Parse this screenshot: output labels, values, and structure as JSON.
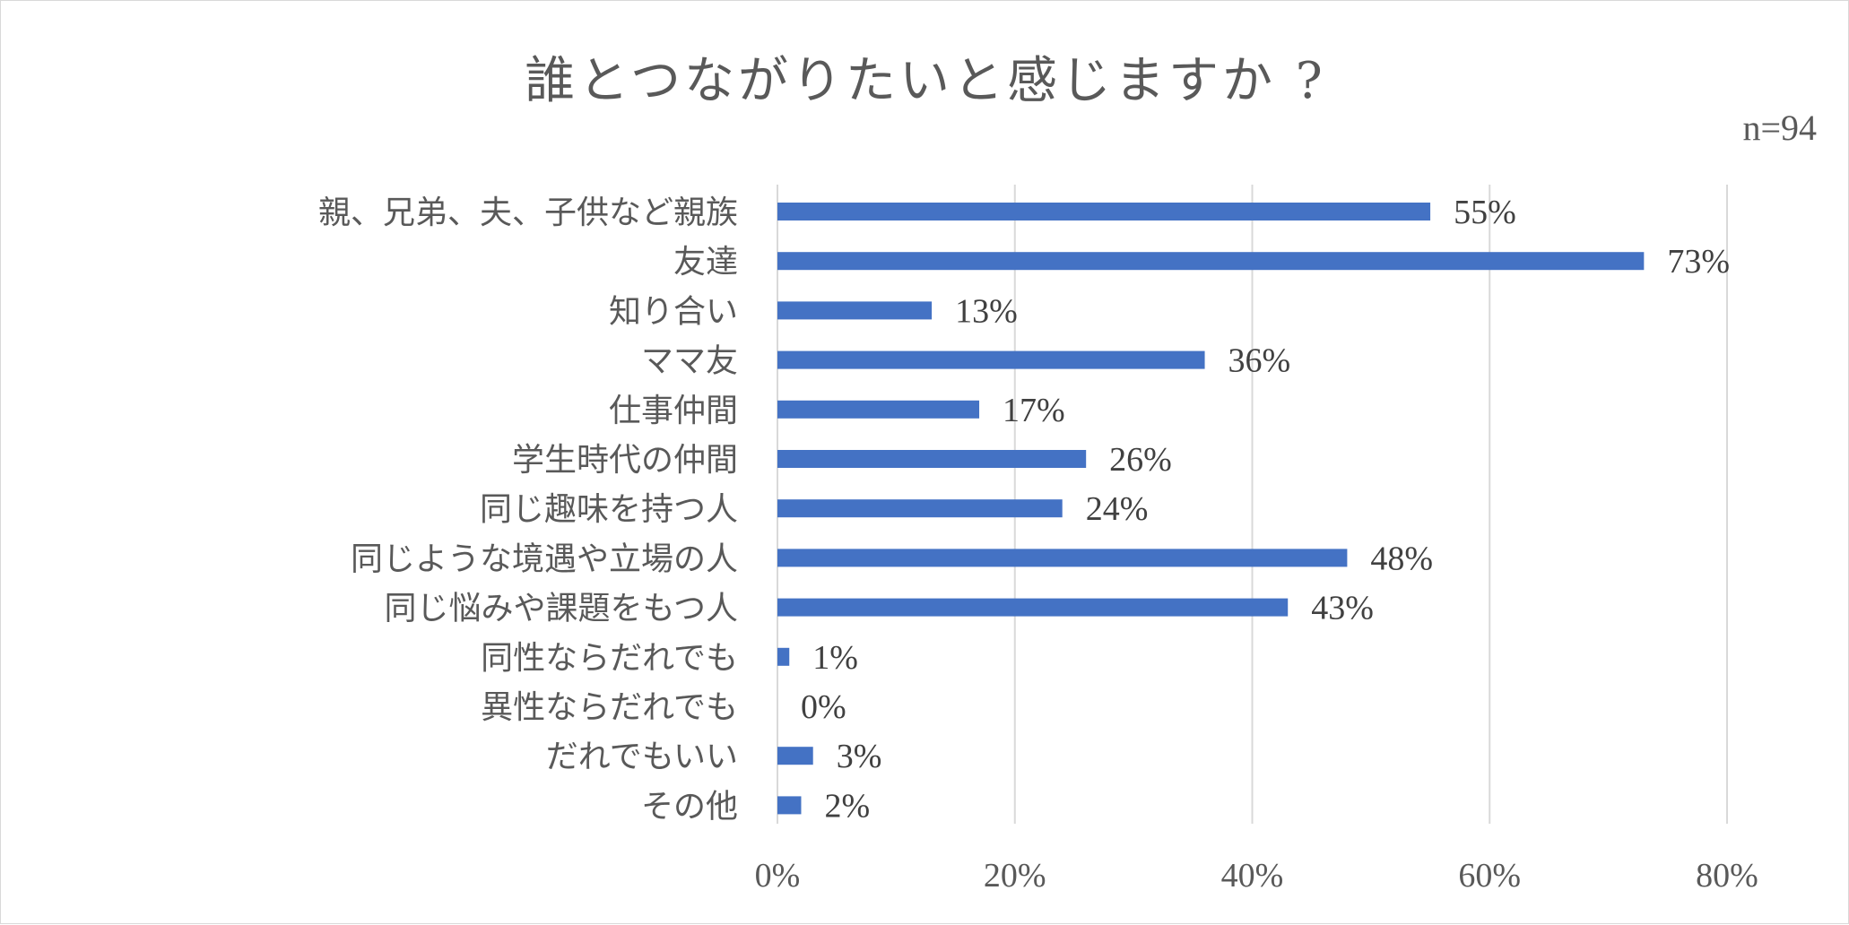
{
  "chart_data": {
    "type": "bar",
    "orientation": "horizontal",
    "title": "誰とつながりたいと感じますか ?",
    "note": "n=94",
    "categories": [
      "親、兄弟、夫、子供など親族",
      "友達",
      "知り合い",
      "ママ友",
      "仕事仲間",
      "学生時代の仲間",
      "同じ趣味を持つ人",
      "同じような境遇や立場の人",
      "同じ悩みや課題をもつ人",
      "同性ならだれでも",
      "異性ならだれでも",
      "だれでもいい",
      "その他"
    ],
    "values": [
      55,
      73,
      13,
      36,
      17,
      26,
      24,
      48,
      43,
      1,
      0,
      3,
      2
    ],
    "data_labels": [
      "55%",
      "73%",
      "13%",
      "36%",
      "17%",
      "26%",
      "24%",
      "48%",
      "43%",
      "1%",
      "0%",
      "3%",
      "2%"
    ],
    "xlim": [
      0,
      80
    ],
    "xticks": [
      0,
      20,
      40,
      60,
      80
    ],
    "xtick_labels": [
      "0%",
      "20%",
      "40%",
      "60%",
      "80%"
    ],
    "grid": true,
    "legend": "none",
    "colors": {
      "bar": "#4472C4",
      "grid": "#d9d9d9",
      "text": "#595959"
    }
  }
}
